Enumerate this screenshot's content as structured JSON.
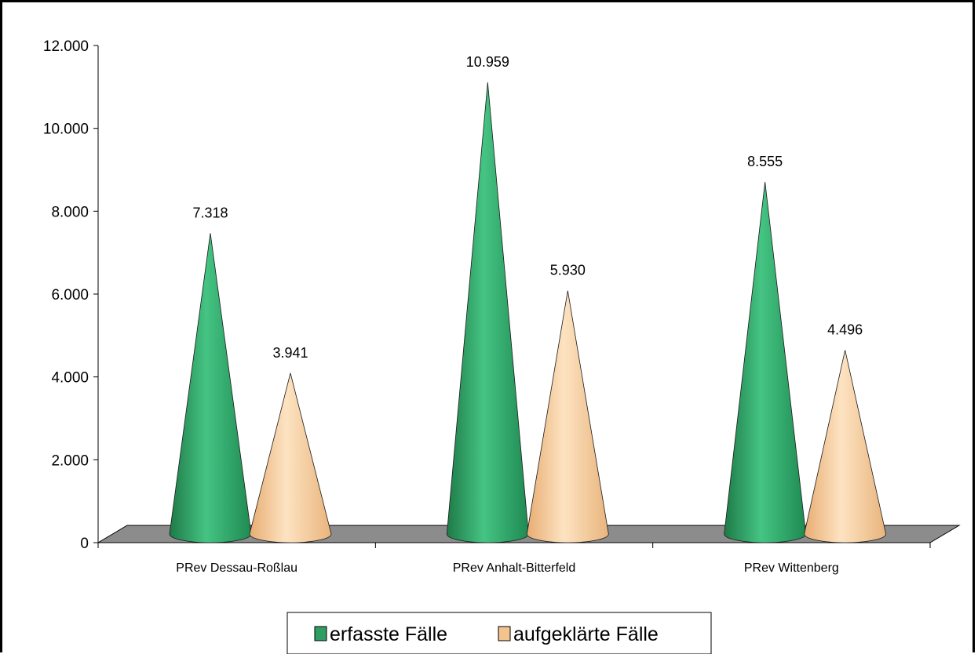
{
  "chart_data": {
    "type": "bar",
    "style": "3d-cone",
    "categories": [
      "PRev Dessau-Roßlau",
      "PRev Anhalt-Bitterfeld",
      "PRev Wittenberg"
    ],
    "series": [
      {
        "name": "erfasste Fälle",
        "color": "#2f9e63",
        "values": [
          7318,
          10959,
          8555
        ],
        "labels": [
          "7.318",
          "10.959",
          "8.555"
        ]
      },
      {
        "name": "aufgeklärte Fälle",
        "color": "#f4c48e",
        "values": [
          3941,
          5930,
          4496
        ],
        "labels": [
          "3.941",
          "5.930",
          "4.496"
        ]
      }
    ],
    "ylim": [
      0,
      12000
    ],
    "yticks": [
      0,
      2000,
      4000,
      6000,
      8000,
      10000,
      12000
    ],
    "ytick_labels": [
      "0",
      "2.000",
      "4.000",
      "6.000",
      "8.000",
      "10.000",
      "12.000"
    ],
    "title": "",
    "xlabel": "",
    "ylabel": "",
    "legend": {
      "position": "bottom"
    },
    "floor_color": "#8c8c8c"
  }
}
